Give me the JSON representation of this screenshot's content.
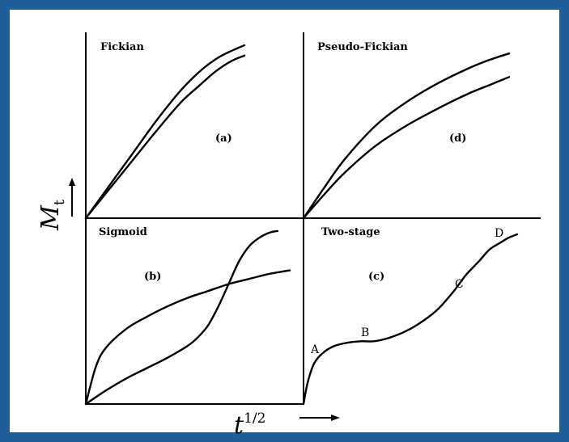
{
  "colors": {
    "frame": "#1f5e96",
    "ink": "#000000",
    "background": "#ffffff"
  },
  "axes": {
    "y_symbol": "M",
    "y_subscript": "t",
    "x_symbol": "t",
    "x_superscript": "1/2",
    "y_arrow_icon": "arrow-up-icon",
    "x_arrow_icon": "arrow-right-icon"
  },
  "chart_data": [
    {
      "type": "line",
      "panel": "top-left",
      "title": "Fickian",
      "tag": "(a)",
      "series": [
        {
          "x": [
            0,
            0.15,
            0.3,
            0.45,
            0.6,
            0.72,
            0.82,
            0.9,
            1.0
          ],
          "y": [
            0,
            0.19,
            0.38,
            0.57,
            0.74,
            0.85,
            0.92,
            0.96,
            1.0
          ]
        },
        {
          "x": [
            0,
            0.15,
            0.3,
            0.45,
            0.6,
            0.72,
            0.82,
            0.92,
            1.0
          ],
          "y": [
            0,
            0.17,
            0.34,
            0.51,
            0.67,
            0.77,
            0.85,
            0.91,
            0.94
          ]
        }
      ]
    },
    {
      "type": "line",
      "panel": "top-right",
      "title": "Pseudo-Fickian",
      "tag": "(d)",
      "series": [
        {
          "x": [
            0,
            0.1,
            0.2,
            0.35,
            0.5,
            0.65,
            0.8,
            0.9,
            1.0
          ],
          "y": [
            0,
            0.18,
            0.35,
            0.55,
            0.69,
            0.8,
            0.89,
            0.94,
            0.98
          ]
        },
        {
          "x": [
            0,
            0.1,
            0.2,
            0.35,
            0.5,
            0.65,
            0.8,
            0.9,
            1.0
          ],
          "y": [
            0,
            0.14,
            0.27,
            0.43,
            0.55,
            0.65,
            0.74,
            0.79,
            0.84
          ]
        }
      ]
    },
    {
      "type": "line",
      "panel": "bottom-left",
      "title": "Sigmoid",
      "tag": "(b)",
      "series": [
        {
          "x": [
            0,
            0.05,
            0.1,
            0.2,
            0.3,
            0.4,
            0.5,
            0.6,
            0.7,
            0.8,
            0.9,
            1.0
          ],
          "y": [
            0,
            0.22,
            0.33,
            0.44,
            0.51,
            0.57,
            0.62,
            0.66,
            0.7,
            0.73,
            0.76,
            0.78
          ]
        },
        {
          "x": [
            0,
            0.1,
            0.2,
            0.3,
            0.4,
            0.5,
            0.55,
            0.6,
            0.65,
            0.7,
            0.75,
            0.8,
            0.85,
            0.9,
            0.94
          ],
          "y": [
            0,
            0.08,
            0.15,
            0.21,
            0.27,
            0.34,
            0.39,
            0.46,
            0.57,
            0.7,
            0.83,
            0.92,
            0.97,
            1.0,
            1.01
          ]
        }
      ]
    },
    {
      "type": "line",
      "panel": "bottom-right",
      "title": "Two-stage",
      "tag": "(c)",
      "series": [
        {
          "x": [
            0,
            0.02,
            0.05,
            0.09,
            0.14,
            0.2,
            0.27,
            0.33,
            0.4,
            0.48,
            0.56,
            0.63,
            0.7,
            0.76,
            0.82,
            0.87,
            0.92,
            0.96,
            1.0
          ],
          "y": [
            0,
            0.13,
            0.24,
            0.3,
            0.34,
            0.36,
            0.37,
            0.37,
            0.39,
            0.43,
            0.49,
            0.56,
            0.66,
            0.76,
            0.84,
            0.91,
            0.95,
            0.98,
            1.0
          ]
        }
      ],
      "point_labels": [
        {
          "label": "A",
          "x": 0.02,
          "y": 0.3
        },
        {
          "label": "B",
          "x": 0.31,
          "y": 0.4
        },
        {
          "label": "C",
          "x": 0.77,
          "y": 0.71
        },
        {
          "label": "D",
          "x": 0.95,
          "y": 1.02
        }
      ]
    }
  ]
}
